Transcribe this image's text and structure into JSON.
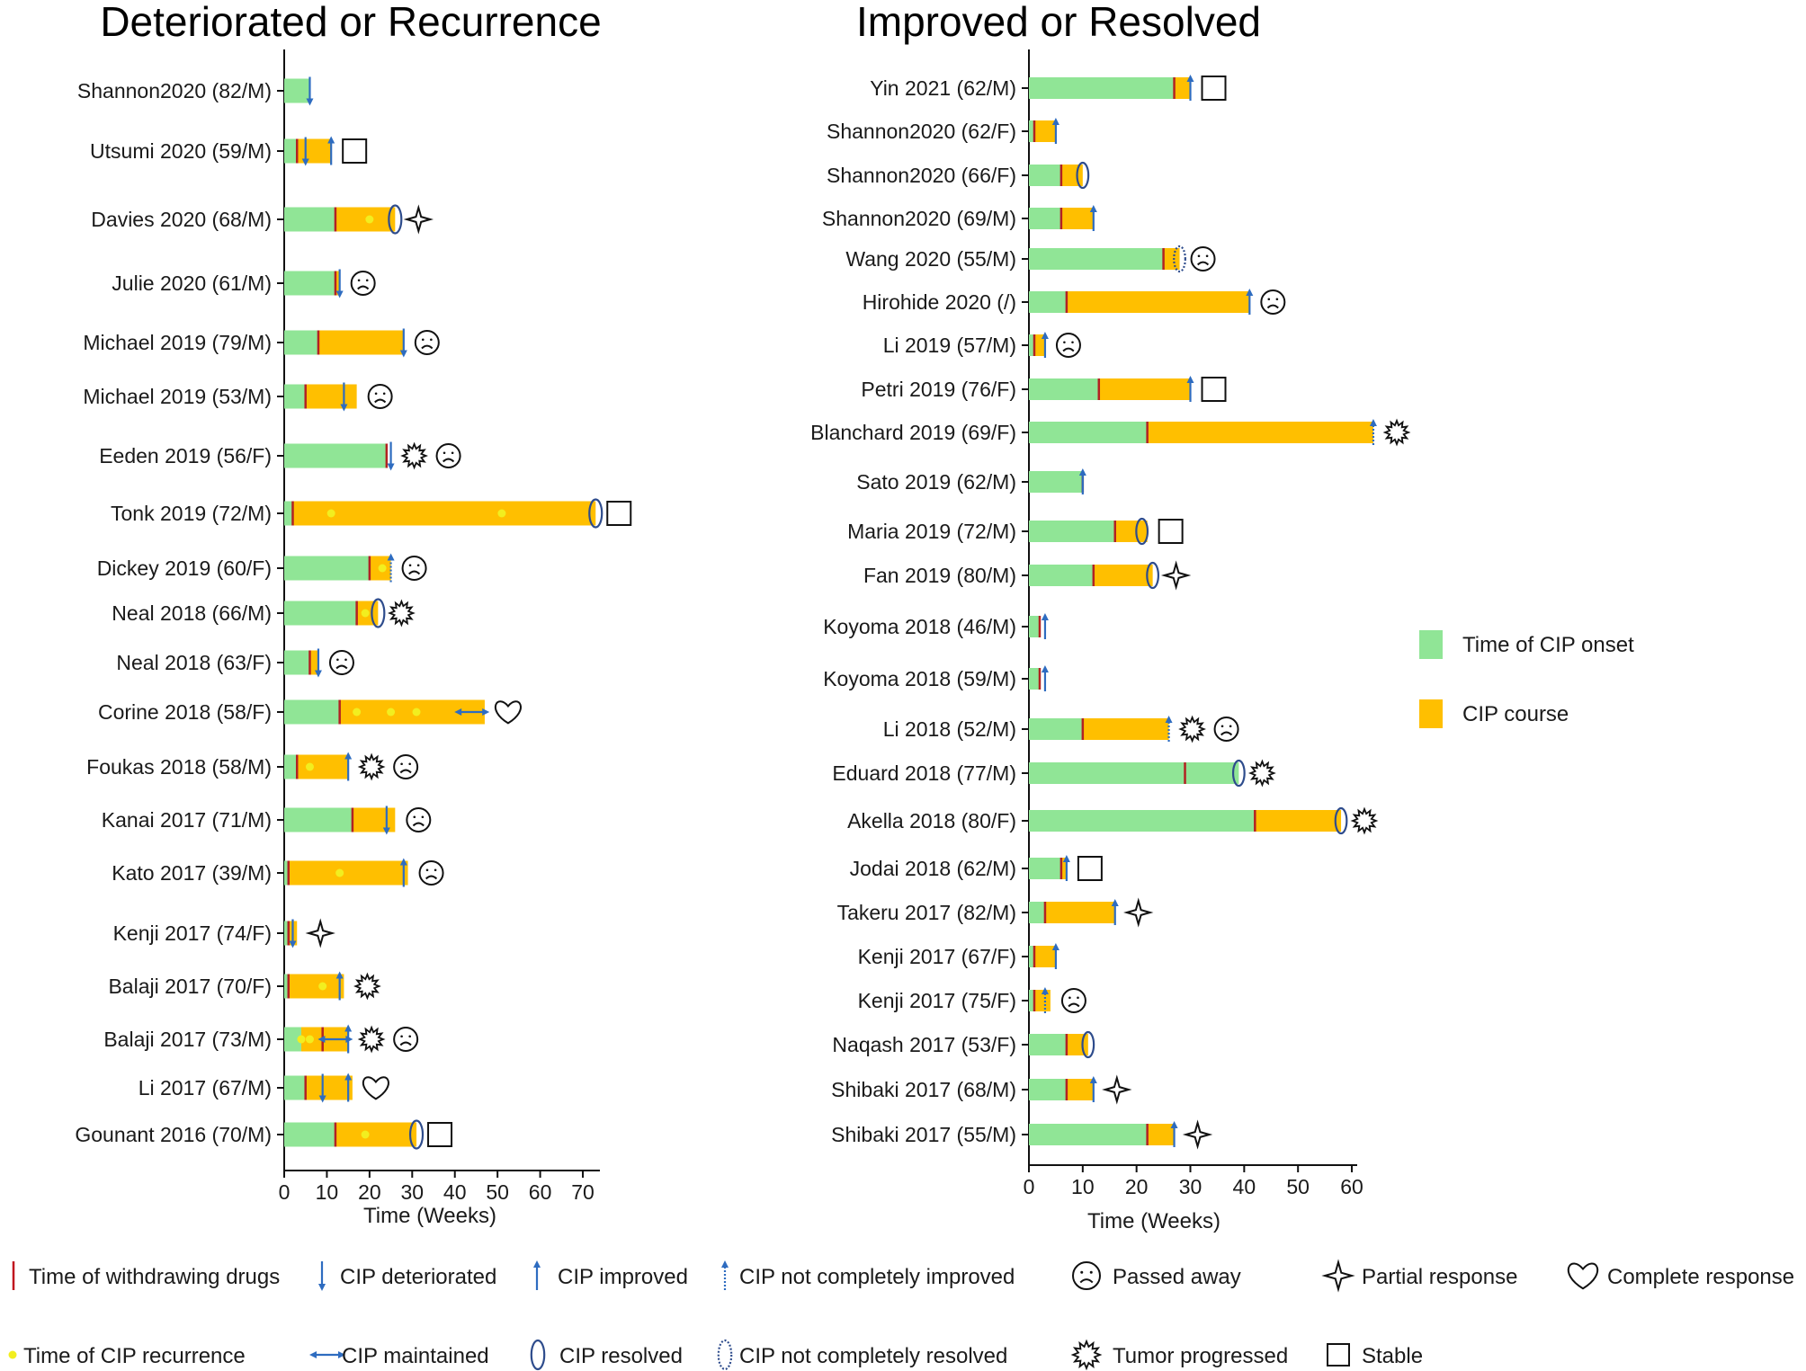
{
  "colors": {
    "onset": "#90E596",
    "course": "#FFBF00",
    "withdraw": "#B22222",
    "arrow": "#2E6CC0",
    "recurrence": "#F2EE1F",
    "resolved": "#2E4C8C"
  },
  "chart_data": [
    {
      "type": "bar",
      "title": "Deteriorated or Recurrence",
      "xlabel": "Time  (Weeks)",
      "xlim": [
        0,
        74
      ],
      "xticks": [
        0,
        10,
        20,
        30,
        40,
        50,
        60,
        70
      ],
      "series_names": [
        "Time of CIP onset",
        "CIP course"
      ],
      "rows": [
        {
          "label": "Shannon2020 (82/M)",
          "onset": 6,
          "course": 0,
          "withdraw": null,
          "markers": [
            {
              "type": "arrow-down",
              "at": 6
            }
          ],
          "recurrence": [],
          "outcomes": []
        },
        {
          "label": "Utsumi 2020 (59/M)",
          "onset": 3,
          "course": 8,
          "withdraw": 3,
          "markers": [
            {
              "type": "arrow-down",
              "at": 5
            },
            {
              "type": "arrow-up",
              "at": 11
            }
          ],
          "recurrence": [],
          "outcomes": [
            "stable"
          ]
        },
        {
          "label": "Davies 2020 (68/M)",
          "onset": 12,
          "course": 14,
          "withdraw": 12,
          "markers": [
            {
              "type": "resolved",
              "at": 26
            }
          ],
          "recurrence": [
            20
          ],
          "outcomes": [
            "partial"
          ]
        },
        {
          "label": "Julie 2020 (61/M)",
          "onset": 12,
          "course": 1,
          "withdraw": 12,
          "markers": [
            {
              "type": "arrow-down",
              "at": 13
            }
          ],
          "recurrence": [],
          "outcomes": [
            "death"
          ]
        },
        {
          "label": "Michael 2019 (79/M)",
          "onset": 8,
          "course": 20,
          "withdraw": 8,
          "markers": [
            {
              "type": "arrow-down",
              "at": 28
            }
          ],
          "recurrence": [],
          "outcomes": [
            "death"
          ]
        },
        {
          "label": "Michael 2019 (53/M)",
          "onset": 5,
          "course": 12,
          "withdraw": 5,
          "markers": [
            {
              "type": "arrow-down",
              "at": 14
            }
          ],
          "recurrence": [],
          "outcomes": [
            "death"
          ]
        },
        {
          "label": "Eeden 2019 (56/F)",
          "onset": 24,
          "course": 0,
          "withdraw": 24,
          "markers": [
            {
              "type": "arrow-down",
              "at": 25
            }
          ],
          "recurrence": [],
          "outcomes": [
            "progress",
            "death"
          ]
        },
        {
          "label": "Tonk 2019 (72/M)",
          "onset": 2,
          "course": 71,
          "withdraw": 2,
          "markers": [
            {
              "type": "resolved",
              "at": 73
            }
          ],
          "recurrence": [
            11,
            51
          ],
          "outcomes": [
            "stable"
          ]
        },
        {
          "label": "Dickey 2019 (60/F)",
          "onset": 20,
          "course": 5,
          "withdraw": 20,
          "markers": [
            {
              "type": "arrow-up-dotted",
              "at": 25
            }
          ],
          "recurrence": [
            23
          ],
          "outcomes": [
            "death"
          ]
        },
        {
          "label": "Neal 2018 (66/M)",
          "onset": 17,
          "course": 5,
          "withdraw": 17,
          "markers": [
            {
              "type": "resolved",
              "at": 22
            }
          ],
          "recurrence": [
            19
          ],
          "outcomes": [
            "progress"
          ]
        },
        {
          "label": "Neal 2018 (63/F)",
          "onset": 6,
          "course": 2,
          "withdraw": 6,
          "markers": [
            {
              "type": "arrow-down",
              "at": 8
            }
          ],
          "recurrence": [],
          "outcomes": [
            "death"
          ]
        },
        {
          "label": "Corine 2018 (58/F)",
          "onset": 13,
          "course": 34,
          "withdraw": 13,
          "markers": [
            {
              "type": "arrow-both",
              "at": 44
            }
          ],
          "recurrence": [
            17,
            25,
            31
          ],
          "outcomes": [
            "complete"
          ]
        },
        {
          "label": "Foukas 2018 (58/M)",
          "onset": 3,
          "course": 12,
          "withdraw": 3,
          "markers": [
            {
              "type": "arrow-up",
              "at": 15
            }
          ],
          "recurrence": [
            6
          ],
          "outcomes": [
            "progress",
            "death"
          ]
        },
        {
          "label": "Kanai 2017 (71/M)",
          "onset": 16,
          "course": 10,
          "withdraw": 16,
          "markers": [
            {
              "type": "arrow-down",
              "at": 24
            }
          ],
          "recurrence": [],
          "outcomes": [
            "death"
          ]
        },
        {
          "label": "Kato 2017 (39/M)",
          "onset": 1,
          "course": 28,
          "withdraw": 1,
          "markers": [
            {
              "type": "arrow-up",
              "at": 28
            }
          ],
          "recurrence": [
            13
          ],
          "outcomes": [
            "death"
          ]
        },
        {
          "label": "Kenji 2017 (74/F)",
          "onset": 1,
          "course": 2,
          "withdraw": 1,
          "markers": [
            {
              "type": "arrow-down",
              "at": 2
            }
          ],
          "recurrence": [],
          "outcomes": [
            "partial"
          ]
        },
        {
          "label": "Balaji 2017 (70/F)",
          "onset": 1,
          "course": 13,
          "withdraw": 1,
          "markers": [
            {
              "type": "arrow-up",
              "at": 13
            }
          ],
          "recurrence": [
            9
          ],
          "outcomes": [
            "progress"
          ]
        },
        {
          "label": "Balaji 2017 (73/M)",
          "onset": 4,
          "course": 11,
          "withdraw": 9,
          "markers": [
            {
              "type": "arrow-both",
              "at": 12
            },
            {
              "type": "arrow-up",
              "at": 15
            }
          ],
          "recurrence": [
            4,
            6
          ],
          "outcomes": [
            "progress",
            "death"
          ]
        },
        {
          "label": "Li 2017 (67/M)",
          "onset": 5,
          "course": 11,
          "withdraw": 5,
          "markers": [
            {
              "type": "arrow-down",
              "at": 9
            },
            {
              "type": "arrow-up",
              "at": 15
            }
          ],
          "recurrence": [],
          "outcomes": [
            "complete"
          ]
        },
        {
          "label": "Gounant 2016 (70/M)",
          "onset": 12,
          "course": 19,
          "withdraw": 12,
          "markers": [
            {
              "type": "resolved",
              "at": 31
            }
          ],
          "recurrence": [
            19
          ],
          "outcomes": [
            "stable"
          ]
        }
      ]
    },
    {
      "type": "bar",
      "title": "Improved or Resolved",
      "xlabel": "Time  (Weeks)",
      "xlim": [
        0,
        61
      ],
      "xticks": [
        0,
        10,
        20,
        30,
        40,
        50,
        60
      ],
      "series_names": [
        "Time of CIP onset",
        "CIP course"
      ],
      "rows": [
        {
          "label": "Yin 2021 (62/M)",
          "onset": 27,
          "course": 3,
          "withdraw": 27,
          "markers": [
            {
              "type": "arrow-up",
              "at": 30
            }
          ],
          "recurrence": [],
          "outcomes": [
            "stable"
          ]
        },
        {
          "label": "Shannon2020 (62/F)",
          "onset": 1,
          "course": 4,
          "withdraw": 1,
          "markers": [
            {
              "type": "arrow-up",
              "at": 5
            }
          ],
          "recurrence": [],
          "outcomes": []
        },
        {
          "label": "Shannon2020 (66/F)",
          "onset": 6,
          "course": 4,
          "withdraw": 6,
          "markers": [
            {
              "type": "resolved",
              "at": 10
            }
          ],
          "recurrence": [],
          "outcomes": []
        },
        {
          "label": "Shannon2020 (69/M)",
          "onset": 6,
          "course": 6,
          "withdraw": 6,
          "markers": [
            {
              "type": "arrow-up",
              "at": 12
            }
          ],
          "recurrence": [],
          "outcomes": []
        },
        {
          "label": "Wang 2020 (55/M)",
          "onset": 25,
          "course": 3,
          "withdraw": 25,
          "markers": [
            {
              "type": "resolved-dotted",
              "at": 28
            }
          ],
          "recurrence": [],
          "outcomes": [
            "death"
          ]
        },
        {
          "label": "Hirohide 2020 (/)",
          "onset": 7,
          "course": 34,
          "withdraw": 7,
          "markers": [
            {
              "type": "arrow-up",
              "at": 41
            }
          ],
          "recurrence": [],
          "outcomes": [
            "death"
          ]
        },
        {
          "label": "Li 2019 (57/M)",
          "onset": 1,
          "course": 2,
          "withdraw": 1,
          "markers": [
            {
              "type": "arrow-up",
              "at": 3
            }
          ],
          "recurrence": [],
          "outcomes": [
            "death"
          ]
        },
        {
          "label": "Petri 2019 (76/F)",
          "onset": 13,
          "course": 17,
          "withdraw": 13,
          "markers": [
            {
              "type": "arrow-up",
              "at": 30
            }
          ],
          "recurrence": [],
          "outcomes": [
            "stable"
          ]
        },
        {
          "label": "Blanchard 2019 (69/F)",
          "onset": 22,
          "course": 42,
          "withdraw": 22,
          "markers": [
            {
              "type": "arrow-up-dotted",
              "at": 64
            }
          ],
          "recurrence": [],
          "outcomes": [
            "progress"
          ]
        },
        {
          "label": "Sato 2019 (62/M)",
          "onset": 10,
          "course": 0,
          "withdraw": 10,
          "markers": [
            {
              "type": "arrow-up",
              "at": 10
            }
          ],
          "recurrence": [],
          "outcomes": []
        },
        {
          "label": "Maria 2019 (72/M)",
          "onset": 16,
          "course": 6,
          "withdraw": 16,
          "markers": [
            {
              "type": "resolved",
              "at": 21
            }
          ],
          "recurrence": [],
          "outcomes": [
            "stable"
          ]
        },
        {
          "label": "Fan 2019 (80/M)",
          "onset": 12,
          "course": 11,
          "withdraw": 12,
          "markers": [
            {
              "type": "resolved",
              "at": 23
            }
          ],
          "recurrence": [],
          "outcomes": [
            "partial"
          ]
        },
        {
          "label": "Koyoma 2018 (46/M)",
          "onset": 2,
          "course": 0,
          "withdraw": 2,
          "markers": [
            {
              "type": "arrow-up",
              "at": 3
            }
          ],
          "recurrence": [],
          "outcomes": []
        },
        {
          "label": "Koyoma 2018 (59/M)",
          "onset": 2,
          "course": 0,
          "withdraw": 2,
          "markers": [
            {
              "type": "arrow-up",
              "at": 3
            }
          ],
          "recurrence": [],
          "outcomes": []
        },
        {
          "label": "Li 2018 (52/M)",
          "onset": 10,
          "course": 16,
          "withdraw": 10,
          "markers": [
            {
              "type": "arrow-up-dotted",
              "at": 26
            }
          ],
          "recurrence": [],
          "outcomes": [
            "progress",
            "death"
          ]
        },
        {
          "label": "Eduard 2018 (77/M)",
          "onset": 39,
          "course": 0,
          "withdraw": 29,
          "markers": [
            {
              "type": "resolved",
              "at": 39
            }
          ],
          "recurrence": [],
          "outcomes": [
            "progress"
          ]
        },
        {
          "label": "Akella 2018 (80/F)",
          "onset": 42,
          "course": 16,
          "withdraw": 42,
          "markers": [
            {
              "type": "resolved",
              "at": 58
            }
          ],
          "recurrence": [],
          "outcomes": [
            "progress"
          ]
        },
        {
          "label": "Jodai 2018 (62/M)",
          "onset": 6,
          "course": 1,
          "withdraw": 6,
          "markers": [
            {
              "type": "arrow-up",
              "at": 7
            }
          ],
          "recurrence": [],
          "outcomes": [
            "stable"
          ]
        },
        {
          "label": "Takeru 2017 (82/M)",
          "onset": 3,
          "course": 13,
          "withdraw": 3,
          "markers": [
            {
              "type": "arrow-up",
              "at": 16
            }
          ],
          "recurrence": [],
          "outcomes": [
            "partial"
          ]
        },
        {
          "label": "Kenji 2017 (67/F)",
          "onset": 1,
          "course": 4,
          "withdraw": 1,
          "markers": [
            {
              "type": "arrow-up",
              "at": 5
            }
          ],
          "recurrence": [],
          "outcomes": []
        },
        {
          "label": "Kenji 2017 (75/F)",
          "onset": 1,
          "course": 3,
          "withdraw": 1,
          "markers": [
            {
              "type": "arrow-up-dotted",
              "at": 3
            }
          ],
          "recurrence": [],
          "outcomes": [
            "death"
          ]
        },
        {
          "label": "Naqash 2017 (53/F)",
          "onset": 7,
          "course": 4,
          "withdraw": 7,
          "markers": [
            {
              "type": "resolved",
              "at": 11
            }
          ],
          "recurrence": [],
          "outcomes": []
        },
        {
          "label": "Shibaki 2017 (68/M)",
          "onset": 7,
          "course": 5,
          "withdraw": 7,
          "markers": [
            {
              "type": "arrow-up",
              "at": 12
            }
          ],
          "recurrence": [],
          "outcomes": [
            "partial"
          ]
        },
        {
          "label": "Shibaki 2017 (55/M)",
          "onset": 22,
          "course": 5,
          "withdraw": 22,
          "markers": [
            {
              "type": "arrow-up",
              "at": 27
            }
          ],
          "recurrence": [],
          "outcomes": [
            "partial"
          ]
        }
      ]
    }
  ],
  "series_legend": [
    {
      "type": "onset",
      "label": "Time of CIP onset"
    },
    {
      "type": "course",
      "label": "CIP course"
    }
  ],
  "symbol_legend": [
    [
      {
        "type": "withdraw",
        "label": "Time of withdrawing drugs"
      },
      {
        "type": "arrow-down",
        "label": "CIP deteriorated"
      },
      {
        "type": "arrow-up",
        "label": "CIP improved"
      },
      {
        "type": "arrow-up-dotted",
        "label": "CIP not completely improved"
      },
      {
        "type": "death",
        "label": "Passed away"
      },
      {
        "type": "partial",
        "label": "Partial response"
      },
      {
        "type": "complete",
        "label": "Complete response"
      }
    ],
    [
      {
        "type": "recurrence",
        "label": "Time of CIP recurrence"
      },
      {
        "type": "arrow-both",
        "label": "CIP maintained"
      },
      {
        "type": "resolved",
        "label": "CIP resolved"
      },
      {
        "type": "resolved-dotted",
        "label": "CIP not completely resolved"
      },
      {
        "type": "progress",
        "label": "Tumor progressed"
      },
      {
        "type": "stable",
        "label": "Stable"
      }
    ]
  ]
}
